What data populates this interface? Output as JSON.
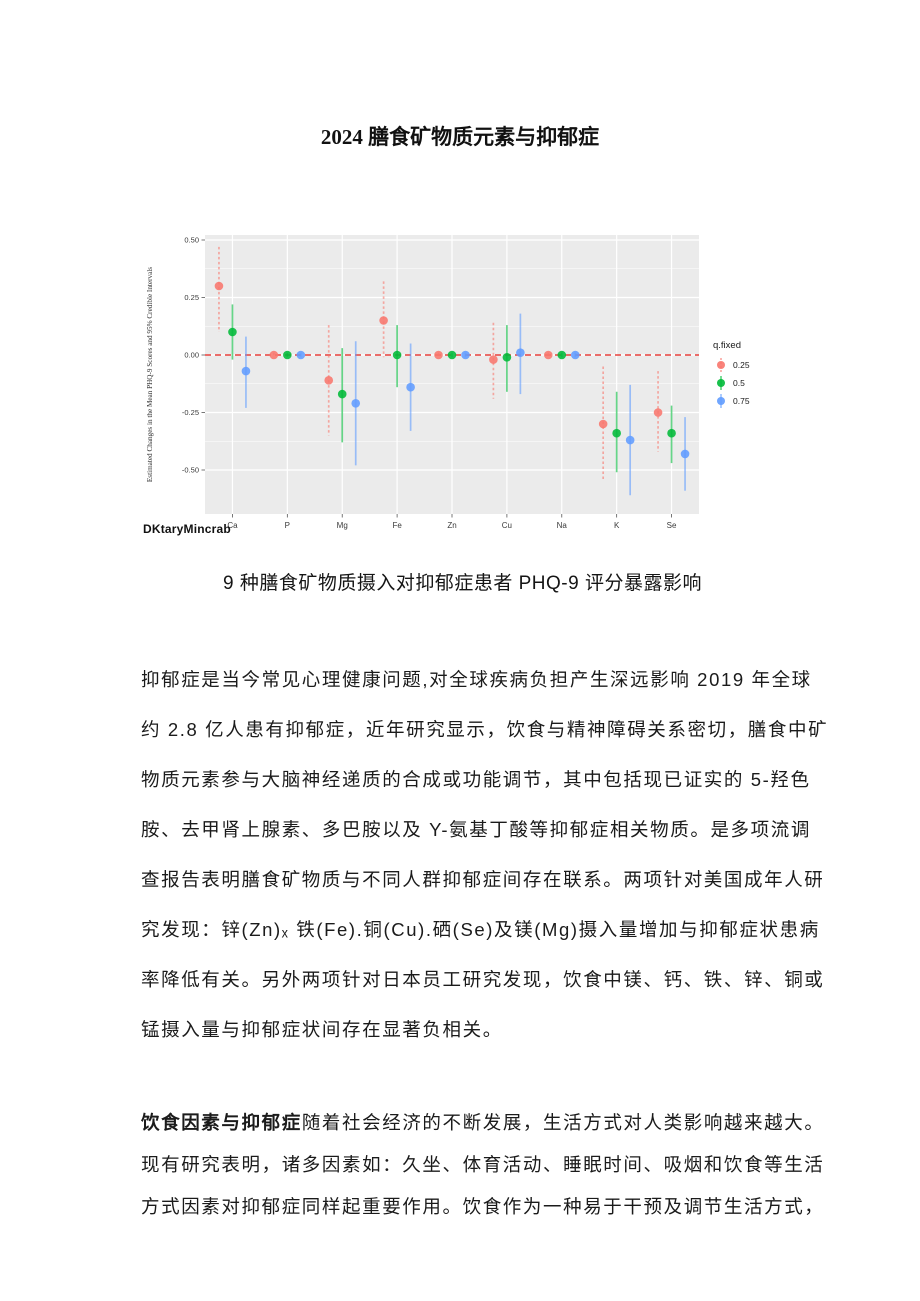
{
  "page": {
    "title": "2024 膳食矿物质元素与抑郁症"
  },
  "figure": {
    "caption": "9 种膳食矿物质摄入对抑郁症患者 PHQ-9 评分暴露影响",
    "watermark": "DKtaryMincrab"
  },
  "chart_data": {
    "type": "pointrange-forest",
    "title": "",
    "xlabel": "",
    "ylabel": "Estimated Changes in the Mean PHQ-9 Scores and 95% Credible Intervals",
    "categories": [
      "Ca",
      "P",
      "Mg",
      "Fe",
      "Zn",
      "Cu",
      "Na",
      "K",
      "Se"
    ],
    "yticks": [
      {
        "v": 0.5,
        "label": "0.50"
      },
      {
        "v": 0.25,
        "label": "0.25"
      },
      {
        "v": 0.0,
        "label": "0.00"
      },
      {
        "v": -0.25,
        "label": "-0.25"
      },
      {
        "v": -0.5,
        "label": "-0.50"
      }
    ],
    "minor_yticks": [
      0.375,
      0.125,
      -0.125,
      -0.375
    ],
    "ylim": [
      -0.69,
      0.52
    ],
    "panel_background": "#EBEBEB",
    "gridline_color": "#FFFFFF",
    "zero_line": {
      "value": 0.0,
      "color": "#E8413C",
      "style": "dashed"
    },
    "legend": {
      "title": "q.fixed",
      "position": "right",
      "entries": [
        {
          "label": "0.25",
          "color": "#F8766D"
        },
        {
          "label": "0.5",
          "color": "#00BA38"
        },
        {
          "label": "0.75",
          "color": "#619CFF"
        }
      ]
    },
    "series": [
      {
        "name": "0.25",
        "color": "#F8766D",
        "dashed_bar": true,
        "points": [
          [
            0.3,
            0.1,
            0.47
          ],
          [
            0.0,
            -0.01,
            0.01
          ],
          [
            -0.11,
            -0.35,
            0.13
          ],
          [
            0.15,
            -0.01,
            0.32
          ],
          [
            0.0,
            -0.01,
            0.01
          ],
          [
            -0.02,
            -0.19,
            0.14
          ],
          [
            0.0,
            -0.01,
            0.01
          ],
          [
            -0.3,
            -0.55,
            -0.05
          ],
          [
            -0.25,
            -0.42,
            -0.07
          ]
        ]
      },
      {
        "name": "0.5",
        "color": "#00BA38",
        "dashed_bar": false,
        "points": [
          [
            0.1,
            -0.02,
            0.22
          ],
          [
            0.0,
            -0.01,
            0.01
          ],
          [
            -0.17,
            -0.38,
            0.03
          ],
          [
            0.0,
            -0.14,
            0.13
          ],
          [
            0.0,
            -0.01,
            0.01
          ],
          [
            -0.01,
            -0.16,
            0.13
          ],
          [
            0.0,
            -0.01,
            0.01
          ],
          [
            -0.34,
            -0.51,
            -0.16
          ],
          [
            -0.34,
            -0.47,
            -0.22
          ]
        ]
      },
      {
        "name": "0.75",
        "color": "#619CFF",
        "dashed_bar": false,
        "points": [
          [
            -0.07,
            -0.23,
            0.08
          ],
          [
            0.0,
            -0.01,
            0.01
          ],
          [
            -0.21,
            -0.48,
            0.06
          ],
          [
            -0.14,
            -0.33,
            0.05
          ],
          [
            0.0,
            -0.01,
            0.01
          ],
          [
            0.01,
            -0.17,
            0.18
          ],
          [
            0.0,
            -0.01,
            0.01
          ],
          [
            -0.37,
            -0.61,
            -0.13
          ],
          [
            -0.43,
            -0.59,
            -0.27
          ]
        ]
      }
    ]
  },
  "body": {
    "p1": {
      "lines": [
        "抑郁症是当今常见心理健康问题,对全球疾病负担产生深远影响 2019 年全球",
        "约 2.8 亿人患有抑郁症，近年研究显示，饮食与精神障碍关系密切，膳食中矿",
        "物质元素参与大脑神经递质的合成或功能调节，其中包括现已证实的 5-羟色",
        "胺、去甲肾上腺素、多巴胺以及 Y-氨基丁酸等抑郁症相关物质。是多项流调",
        "查报告表明膳食矿物质与不同人群抑郁症间存在联系。两项针对美国成年人研",
        "究发现：锌(Zn)ₓ 铁(Fe).铜(Cu).硒(Se)及镁(Mg)摄入量增加与抑郁症状患病",
        "率降低有关。另外两项针对日本员工研究发现，饮食中镁、钙、铁、锌、铜或",
        "锰摄入量与抑郁症状间存在显著负相关。"
      ]
    },
    "p2": {
      "lead_bold": "饮食因素与抑郁症",
      "lead_rest": "随着社会经济的不断发展，生活方式对人类影响越来越大。",
      "lines": [
        "现有研究表明，诸多因素如：久坐、体育活动、睡眠时间、吸烟和饮食等生活",
        "方式因素对抑郁症同样起重要作用。饮食作为一种易于干预及调节生活方式，"
      ]
    }
  }
}
